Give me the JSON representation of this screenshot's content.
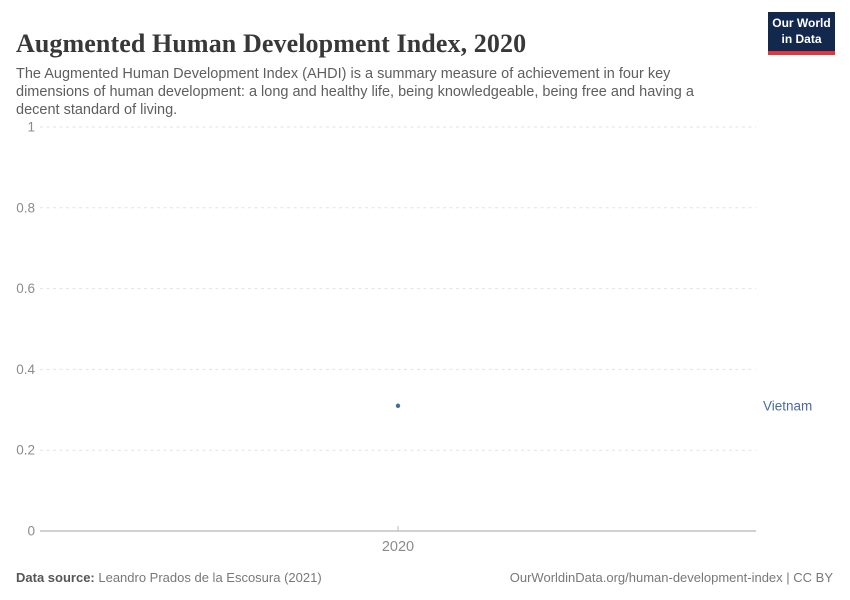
{
  "header": {
    "title": "Augmented Human Development Index, 2020",
    "subtitle": "The Augmented Human Development Index (AHDI) is a summary measure of achievement in four key dimensions of human development: a long and healthy life, being knowledgeable, being free and having a decent standard of living.",
    "logo": {
      "line1": "Our World",
      "line2": "in Data",
      "background_color": "#12294d",
      "accent_color": "#e0373c"
    }
  },
  "chart_data": {
    "type": "scatter",
    "title": "Augmented Human Development Index, 2020",
    "x": [
      2020
    ],
    "xticks": [
      "2020"
    ],
    "series": [
      {
        "name": "Vietnam",
        "values": [
          0.31
        ],
        "color": "#4c6a9c"
      }
    ],
    "ylim": [
      0,
      1
    ],
    "yticks": [
      {
        "value": 0,
        "label": "0"
      },
      {
        "value": 0.2,
        "label": "0.2"
      },
      {
        "value": 0.4,
        "label": "0.4"
      },
      {
        "value": 0.6,
        "label": "0.6"
      },
      {
        "value": 0.8,
        "label": "0.8"
      },
      {
        "value": 1,
        "label": "1"
      }
    ],
    "grid": true,
    "gridline_color": "#e3e3e3",
    "axis_line_color": "#a3a3a3",
    "tick_label_color": "#8c8c8c",
    "legend_position": "right-of-point"
  },
  "footer": {
    "source_label": "Data source:",
    "source_text": " Leandro Prados de la Escosura (2021)",
    "license_text": "OurWorldinData.org/human-development-index | CC BY"
  }
}
